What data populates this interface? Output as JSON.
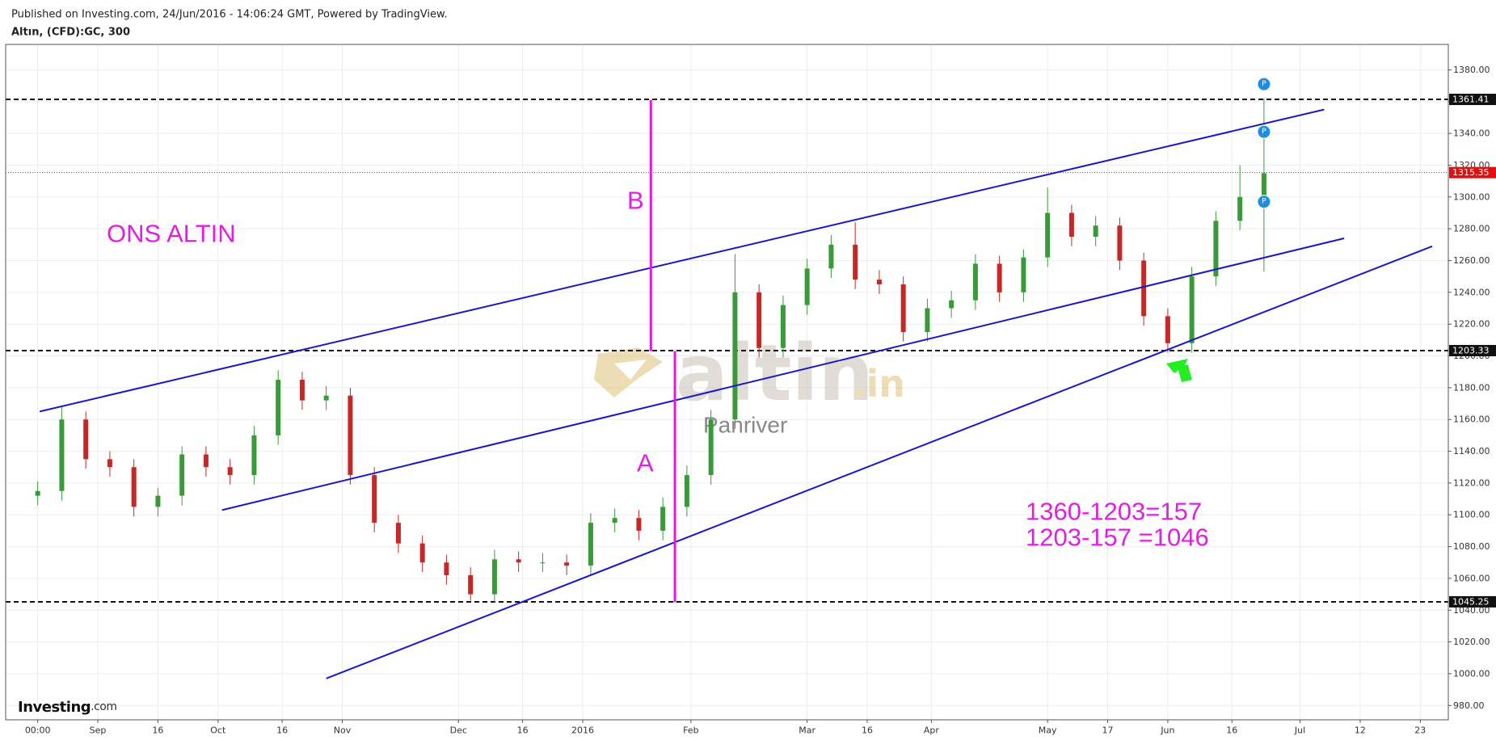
{
  "header": {
    "published": "Published on Investing.com, 24/Jun/2016 - 14:06:24 GMT, Powered by TradingView.",
    "symbol": "Altın, (CFD):GC, 300"
  },
  "chart_data": {
    "type": "candlestick",
    "grid": true,
    "up_color": "#3a9a3a",
    "down_color": "#c62828",
    "xlim": [
      -8,
      352
    ],
    "xticks": [
      {
        "value": 0,
        "label": "00:00"
      },
      {
        "value": 15,
        "label": "Sep"
      },
      {
        "value": 30,
        "label": "16"
      },
      {
        "value": 45,
        "label": "Oct"
      },
      {
        "value": 61,
        "label": "16"
      },
      {
        "value": 76,
        "label": "Nov"
      },
      {
        "value": 105,
        "label": "Dec"
      },
      {
        "value": 121,
        "label": "16"
      },
      {
        "value": 136,
        "label": "2016"
      },
      {
        "value": 163,
        "label": "Feb"
      },
      {
        "value": 192,
        "label": "Mar"
      },
      {
        "value": 207,
        "label": "16"
      },
      {
        "value": 223,
        "label": "Apr"
      },
      {
        "value": 252,
        "label": "May"
      },
      {
        "value": 267,
        "label": "17"
      },
      {
        "value": 282,
        "label": "Jun"
      },
      {
        "value": 298,
        "label": "16"
      },
      {
        "value": 315,
        "label": "Jul"
      },
      {
        "value": 330,
        "label": "12"
      },
      {
        "value": 345,
        "label": "23"
      }
    ],
    "ylim": [
      971,
      1396
    ],
    "yticks": [
      {
        "value": 980,
        "label": "980.00"
      },
      {
        "value": 1000,
        "label": "1000.00"
      },
      {
        "value": 1020,
        "label": "1020.00"
      },
      {
        "value": 1040,
        "label": "1040.00"
      },
      {
        "value": 1060,
        "label": "1060.00"
      },
      {
        "value": 1080,
        "label": "1080.00"
      },
      {
        "value": 1100,
        "label": "1100.00"
      },
      {
        "value": 1120,
        "label": "1120.00"
      },
      {
        "value": 1140,
        "label": "1140.00"
      },
      {
        "value": 1160,
        "label": "1160.00"
      },
      {
        "value": 1180,
        "label": "1180.00"
      },
      {
        "value": 1200,
        "label": "1200.00"
      },
      {
        "value": 1220,
        "label": "1220.00"
      },
      {
        "value": 1240,
        "label": "1240.00"
      },
      {
        "value": 1260,
        "label": "1260.00"
      },
      {
        "value": 1280,
        "label": "1280.00"
      },
      {
        "value": 1300,
        "label": "1300.00"
      },
      {
        "value": 1320,
        "label": "1320.00"
      },
      {
        "value": 1340,
        "label": "1340.00"
      },
      {
        "value": 1360,
        "label": "1360.00"
      },
      {
        "value": 1380,
        "label": "1380.00"
      }
    ],
    "x": [
      0,
      6,
      12,
      18,
      24,
      30,
      36,
      42,
      48,
      54,
      60,
      66,
      72,
      78,
      84,
      90,
      96,
      102,
      108,
      114,
      120,
      126,
      132,
      138,
      144,
      150,
      156,
      162,
      168,
      174,
      180,
      186,
      192,
      198,
      204,
      210,
      216,
      222,
      228,
      234,
      240,
      246,
      252,
      258,
      264,
      270,
      276,
      282,
      288,
      294,
      300,
      306
    ],
    "open": [
      1112,
      1115,
      1160,
      1135,
      1130,
      1105,
      1112,
      1138,
      1130,
      1125,
      1150,
      1185,
      1172,
      1175,
      1125,
      1095,
      1082,
      1070,
      1062,
      1050,
      1072,
      1070,
      1070,
      1068,
      1095,
      1098,
      1090,
      1105,
      1125,
      1160,
      1240,
      1205,
      1232,
      1255,
      1270,
      1248,
      1245,
      1215,
      1230,
      1235,
      1258,
      1240,
      1262,
      1290,
      1275,
      1282,
      1260,
      1225,
      1208,
      1250,
      1285,
      1300
    ],
    "high": [
      1121,
      1168,
      1165,
      1140,
      1135,
      1117,
      1143,
      1143,
      1135,
      1156,
      1191,
      1190,
      1181,
      1180,
      1130,
      1100,
      1087,
      1075,
      1067,
      1078,
      1077,
      1076,
      1075,
      1101,
      1104,
      1103,
      1111,
      1131,
      1166,
      1264,
      1245,
      1238,
      1261,
      1276,
      1284,
      1254,
      1250,
      1236,
      1241,
      1264,
      1263,
      1267,
      1306,
      1295,
      1288,
      1287,
      1265,
      1230,
      1256,
      1291,
      1320,
      1362
    ],
    "low": [
      1106,
      1109,
      1129,
      1124,
      1099,
      1099,
      1106,
      1124,
      1119,
      1119,
      1144,
      1166,
      1166,
      1119,
      1089,
      1076,
      1064,
      1056,
      1046,
      1045,
      1064,
      1064,
      1062,
      1062,
      1089,
      1084,
      1084,
      1099,
      1119,
      1154,
      1199,
      1199,
      1226,
      1249,
      1242,
      1239,
      1209,
      1209,
      1224,
      1229,
      1234,
      1234,
      1256,
      1269,
      1269,
      1254,
      1219,
      1202,
      1202,
      1244,
      1279,
      1253
    ],
    "close": [
      1115,
      1160,
      1135,
      1130,
      1105,
      1112,
      1138,
      1130,
      1125,
      1150,
      1185,
      1172,
      1175,
      1125,
      1095,
      1082,
      1070,
      1062,
      1050,
      1072,
      1070,
      1070,
      1068,
      1095,
      1098,
      1090,
      1105,
      1125,
      1160,
      1240,
      1205,
      1232,
      1255,
      1270,
      1248,
      1245,
      1215,
      1230,
      1235,
      1258,
      1240,
      1262,
      1290,
      1275,
      1282,
      1260,
      1225,
      1208,
      1250,
      1285,
      1300,
      1315
    ],
    "levels": [
      1361.41,
      1203.33,
      1045.25
    ],
    "last_price": 1315.35,
    "last_color": "#e01010",
    "trend_color": "#1818c8",
    "trendlines": [
      {
        "x": [
          0.5,
          321
        ],
        "y": [
          1165,
          1355
        ]
      },
      {
        "x": [
          46,
          326
        ],
        "y": [
          1103,
          1274
        ]
      },
      {
        "x": [
          72,
          348
        ],
        "y": [
          997,
          1269
        ]
      }
    ],
    "marker_color": "#e018e0",
    "verticals": [
      {
        "x": 153,
        "y": [
          1361,
          1203
        ]
      },
      {
        "x": 159,
        "y": [
          1203,
          1045
        ]
      }
    ],
    "events": [
      {
        "x": 306,
        "y": 1371,
        "label": "P"
      },
      {
        "x": 306,
        "y": 1341,
        "label": "P"
      },
      {
        "x": 306,
        "y": 1297,
        "label": "P"
      }
    ],
    "annotations": {
      "name": "ONS ALTIN",
      "b": "B",
      "a": "A",
      "calc": [
        "1360-1203=157",
        "1203-157 =1046"
      ]
    },
    "watermark": {
      "brand": "altin",
      "suffix": ".in",
      "author": "Panriver"
    },
    "logo": {
      "name": "Investing",
      "suffix": ".com"
    }
  }
}
